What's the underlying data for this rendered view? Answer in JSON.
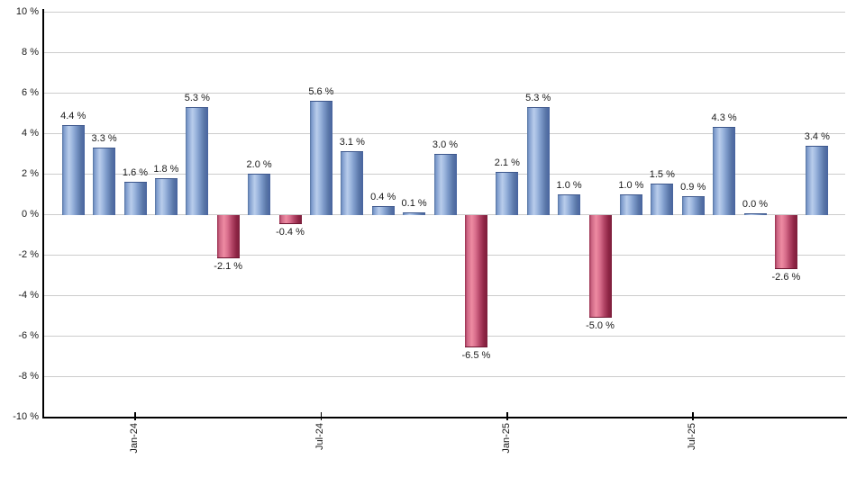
{
  "chart_data": {
    "type": "bar",
    "title": "",
    "xlabel": "",
    "ylabel": "",
    "ylim": [
      -10,
      10
    ],
    "grid_step_pct": 2,
    "grid": true,
    "legend": "none",
    "values": [
      4.4,
      3.3,
      1.6,
      1.8,
      5.3,
      -2.1,
      2.0,
      -0.4,
      5.6,
      3.1,
      0.4,
      0.1,
      3.0,
      -6.5,
      2.1,
      5.3,
      1.0,
      -5.0,
      1.0,
      1.5,
      0.9,
      4.3,
      0.0,
      -2.6,
      3.4
    ],
    "bar_labels": [
      "4.4 %",
      "3.3 %",
      "1.6 %",
      "1.8 %",
      "5.3 %",
      "-2.1 %",
      "2.0 %",
      "-0.4 %",
      "5.6 %",
      "3.1 %",
      "0.4 %",
      "0.1 %",
      "3.0 %",
      "-6.5 %",
      "2.1 %",
      "5.3 %",
      "1.0 %",
      "-5.0 %",
      "1.0 %",
      "1.5 %",
      "0.9 %",
      "4.3 %",
      "0.0 %",
      "-2.6 %",
      "3.4 %"
    ],
    "y_tick_labels": [
      "10 %",
      "8 %",
      "6 %",
      "4 %",
      "2 %",
      "0 %",
      "-2 %",
      "-4 %",
      "-6 %",
      "-8 %",
      "-10 %"
    ],
    "x_ticks": [
      {
        "label": "Jan-24",
        "bar_index": 2
      },
      {
        "label": "Jul-24",
        "bar_index": 8
      },
      {
        "label": "Jan-25",
        "bar_index": 14
      },
      {
        "label": "Jul-25",
        "bar_index": 20
      }
    ],
    "colors": {
      "positive_fill": "#7b98c8",
      "positive_highlight": "#b9cdeb",
      "positive_dark": "#47639e",
      "negative_fill": "#b44667",
      "negative_highlight": "#ee8ba2",
      "negative_dark": "#7e1f3d",
      "gridline": "#cdcdcd",
      "axis": "#000000",
      "text": "#1a1a1a",
      "background": "#ffffff"
    }
  }
}
